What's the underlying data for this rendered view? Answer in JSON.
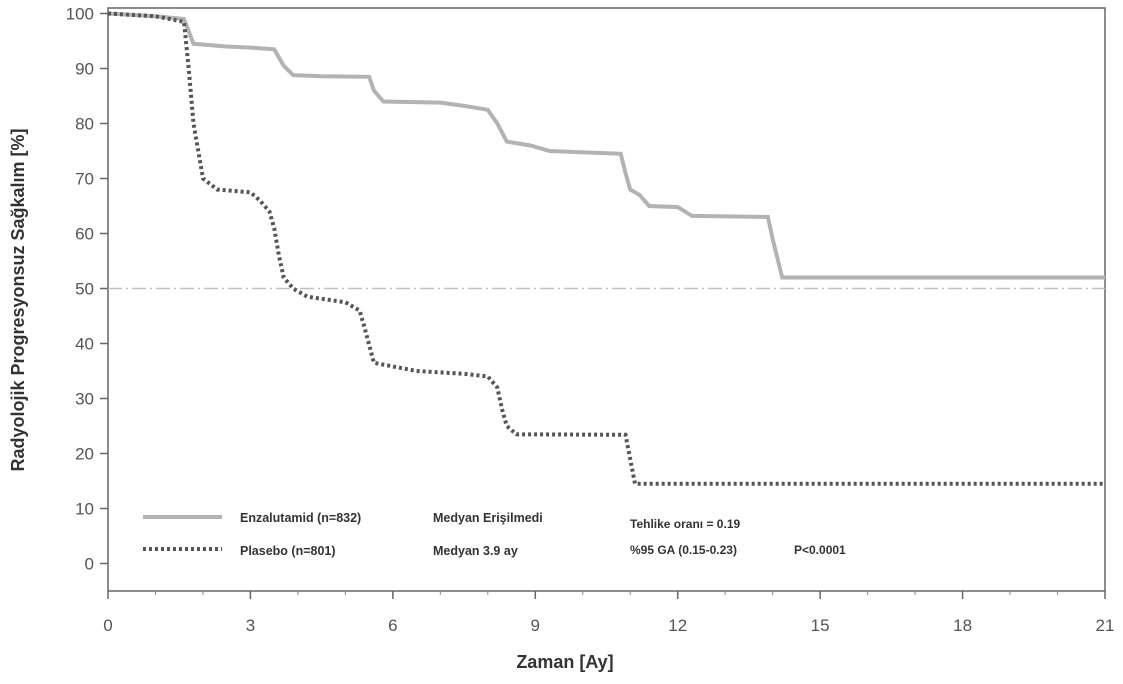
{
  "chart_data": {
    "type": "line",
    "xlabel": "Zaman [Ay]",
    "ylabel": "Radyolojik Progresyonsuz Sağkalım [%]",
    "xlim": [
      0,
      21
    ],
    "ylim": [
      -5,
      101
    ],
    "xticks": [
      0,
      3,
      6,
      9,
      12,
      15,
      18,
      21
    ],
    "yticks": [
      0,
      10,
      20,
      30,
      40,
      50,
      60,
      70,
      80,
      90,
      100
    ],
    "grid": false,
    "reference_line": {
      "y": 50,
      "style": "dash-dot"
    },
    "series": [
      {
        "name": "Enzalutamid (n=832)",
        "median": "Medyan Erişilmedi",
        "style": "solid",
        "color": "#b3b3b3",
        "points": [
          [
            0,
            100
          ],
          [
            1.0,
            99.5
          ],
          [
            1.6,
            99
          ],
          [
            1.8,
            94.5
          ],
          [
            2.5,
            94
          ],
          [
            3.0,
            93.8
          ],
          [
            3.5,
            93.5
          ],
          [
            3.7,
            90.5
          ],
          [
            3.9,
            88.8
          ],
          [
            4.5,
            88.6
          ],
          [
            5.5,
            88.5
          ],
          [
            5.6,
            86
          ],
          [
            5.8,
            84
          ],
          [
            7.0,
            83.8
          ],
          [
            7.5,
            83.2
          ],
          [
            8.0,
            82.5
          ],
          [
            8.2,
            80
          ],
          [
            8.4,
            76.7
          ],
          [
            8.9,
            76
          ],
          [
            9.3,
            75
          ],
          [
            10.8,
            74.5
          ],
          [
            10.9,
            71
          ],
          [
            11.0,
            68
          ],
          [
            11.2,
            67
          ],
          [
            11.4,
            65
          ],
          [
            12.0,
            64.8
          ],
          [
            12.3,
            63.2
          ],
          [
            13.9,
            63
          ],
          [
            14.0,
            59
          ],
          [
            14.2,
            52
          ],
          [
            21.0,
            52
          ]
        ]
      },
      {
        "name": "Plasebo (n=801)",
        "median": "Medyan 3.9 ay",
        "style": "dotted",
        "color": "#555555",
        "points": [
          [
            0,
            100
          ],
          [
            1.0,
            99.5
          ],
          [
            1.6,
            98.5
          ],
          [
            1.7,
            90
          ],
          [
            1.8,
            80
          ],
          [
            2.0,
            70
          ],
          [
            2.3,
            68
          ],
          [
            3.0,
            67.5
          ],
          [
            3.2,
            66
          ],
          [
            3.4,
            64
          ],
          [
            3.5,
            61
          ],
          [
            3.6,
            56
          ],
          [
            3.7,
            52
          ],
          [
            3.9,
            50
          ],
          [
            4.2,
            48.5
          ],
          [
            5.0,
            47.5
          ],
          [
            5.3,
            46
          ],
          [
            5.4,
            43
          ],
          [
            5.6,
            36.5
          ],
          [
            6.5,
            35
          ],
          [
            7.5,
            34.5
          ],
          [
            8.0,
            34
          ],
          [
            8.2,
            32
          ],
          [
            8.3,
            28
          ],
          [
            8.4,
            25
          ],
          [
            8.6,
            23.5
          ],
          [
            10.9,
            23.4
          ],
          [
            11.0,
            19
          ],
          [
            11.1,
            14.5
          ],
          [
            21.0,
            14.5
          ]
        ]
      }
    ],
    "legend": {
      "position": "bottom-left",
      "entries": [
        {
          "label": "Enzalutamid (n=832)",
          "median": "Medyan Erişilmedi"
        },
        {
          "label": "Plasebo (n=801)",
          "median": "Medyan 3.9 ay"
        }
      ]
    },
    "annotations": {
      "hazard_ratio": "Tehlike oranı = 0.19",
      "ci": "%95 GA (0.15-0.23)",
      "p_value": "P<0.0001"
    }
  }
}
